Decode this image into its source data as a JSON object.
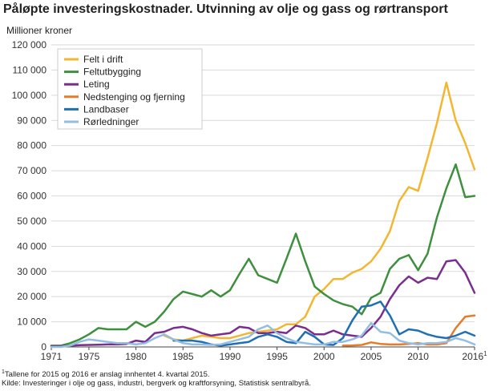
{
  "title": "Påløpte investeringskostnader. Utvinning av olje og gass og rørtransport",
  "ylabel": "Millioner kroner",
  "footnote_marker": "1",
  "footnote_text": "Tallene for 2015 og 2016 er anslag innhentet 4. kvartal 2015.",
  "source": "Kilde: Investeringer i olje og gass, industri, bergverk og kraftforsyning, Statistisk sentralbyrå.",
  "chart_data": {
    "type": "line",
    "xlim": [
      1971,
      2016
    ],
    "ylim": [
      0,
      120000
    ],
    "xticks": [
      1971,
      1975,
      1980,
      1985,
      1990,
      1995,
      2000,
      2005,
      2010,
      2016
    ],
    "xtick_labels": [
      "1971",
      "1975",
      "1980",
      "1985",
      "1990",
      "1995",
      "2000",
      "2005",
      "2010",
      "2016"
    ],
    "last_tick_marker": "1",
    "yticks": [
      0,
      10000,
      20000,
      30000,
      40000,
      50000,
      60000,
      70000,
      80000,
      90000,
      100000,
      110000,
      120000
    ],
    "ytick_labels": [
      "0",
      "10 000",
      "20 000",
      "30 000",
      "40 000",
      "50 000",
      "60 000",
      "70 000",
      "80 000",
      "90 000",
      "100 000",
      "110 000",
      "120 000"
    ],
    "grid": true,
    "legend_position": "top-left",
    "series": [
      {
        "name": "Felt i drift",
        "color": "#f2b630",
        "x": [
          1983,
          1984,
          1985,
          1986,
          1987,
          1988,
          1989,
          1990,
          1991,
          1992,
          1993,
          1994,
          1995,
          1996,
          1997,
          1998,
          1999,
          2000,
          2001,
          2002,
          2003,
          2004,
          2005,
          2006,
          2007,
          2008,
          2009,
          2010,
          2011,
          2012,
          2013,
          2014,
          2015,
          2016
        ],
        "y": [
          4500,
          3000,
          2500,
          3500,
          4500,
          4000,
          3500,
          3500,
          4500,
          5500,
          6000,
          6500,
          7000,
          9000,
          9000,
          12000,
          20000,
          23000,
          27000,
          27000,
          29500,
          31000,
          34000,
          39000,
          46000,
          58000,
          63500,
          62000,
          75000,
          89000,
          105000,
          90000,
          81000,
          70500
        ]
      },
      {
        "name": "Feltutbygging",
        "color": "#3e8f3e",
        "x": [
          1971,
          1972,
          1973,
          1974,
          1975,
          1976,
          1977,
          1978,
          1979,
          1980,
          1981,
          1982,
          1983,
          1984,
          1985,
          1986,
          1987,
          1988,
          1989,
          1990,
          1991,
          1992,
          1993,
          1994,
          1995,
          1996,
          1997,
          1998,
          1999,
          2000,
          2001,
          2002,
          2003,
          2004,
          2005,
          2006,
          2007,
          2008,
          2009,
          2010,
          2011,
          2012,
          2013,
          2014,
          2015,
          2016
        ],
        "y": [
          500,
          500,
          1500,
          3000,
          5000,
          7500,
          7000,
          7000,
          7000,
          10000,
          8000,
          10000,
          14000,
          19000,
          22000,
          21000,
          20000,
          22500,
          20000,
          22500,
          29000,
          35000,
          28500,
          27000,
          25500,
          35000,
          45000,
          34000,
          24000,
          21000,
          18500,
          17000,
          16000,
          13000,
          19500,
          21500,
          31000,
          35000,
          36500,
          30500,
          37000,
          51500,
          63000,
          72500,
          59500,
          60000
        ]
      },
      {
        "name": "Leting",
        "color": "#7b2d8e",
        "x": [
          1971,
          1972,
          1973,
          1974,
          1975,
          1976,
          1977,
          1978,
          1979,
          1980,
          1981,
          1982,
          1983,
          1984,
          1985,
          1986,
          1987,
          1988,
          1989,
          1990,
          1991,
          1992,
          1993,
          1994,
          1995,
          1996,
          1997,
          1998,
          1999,
          2000,
          2001,
          2002,
          2003,
          2004,
          2005,
          2006,
          2007,
          2008,
          2009,
          2010,
          2011,
          2012,
          2013,
          2014,
          2015,
          2016
        ],
        "y": [
          300,
          300,
          500,
          700,
          800,
          900,
          1000,
          1000,
          1200,
          2500,
          2000,
          5500,
          6000,
          7500,
          8000,
          7000,
          5500,
          4500,
          5000,
          5500,
          8000,
          7500,
          5500,
          5500,
          6000,
          5500,
          8500,
          7500,
          5000,
          5000,
          6500,
          5000,
          4500,
          4000,
          7500,
          12000,
          19000,
          24500,
          28000,
          25500,
          27500,
          27000,
          34000,
          34500,
          29500,
          21500
        ]
      },
      {
        "name": "Nedstenging og fjerning",
        "color": "#e87c26",
        "x": [
          2002,
          2003,
          2004,
          2005,
          2006,
          2007,
          2008,
          2009,
          2010,
          2011,
          2012,
          2013,
          2014,
          2015,
          2016
        ],
        "y": [
          500,
          600,
          800,
          1800,
          1200,
          1000,
          1000,
          1200,
          1500,
          1000,
          1000,
          1500,
          7500,
          12000,
          12500
        ]
      },
      {
        "name": "Landbaser",
        "color": "#1f6fb4",
        "x": [
          1984,
          1985,
          1986,
          1987,
          1988,
          1989,
          1990,
          1991,
          1992,
          1993,
          1994,
          1995,
          1996,
          1997,
          1998,
          1999,
          2000,
          2001,
          2002,
          2003,
          2004,
          2005,
          2006,
          2007,
          2008,
          2009,
          2010,
          2011,
          2012,
          2013,
          2014,
          2015,
          2016
        ],
        "y": [
          2500,
          2500,
          2500,
          2000,
          1000,
          500,
          1000,
          1500,
          2000,
          4000,
          5000,
          4000,
          2000,
          1500,
          6000,
          4000,
          1000,
          800,
          3500,
          10500,
          16000,
          16500,
          18000,
          12500,
          5000,
          7000,
          6500,
          5000,
          4000,
          3500,
          4500,
          6000,
          4500
        ]
      },
      {
        "name": "Rørledninger",
        "color": "#93bde3",
        "x": [
          1971,
          1972,
          1973,
          1974,
          1975,
          1976,
          1977,
          1978,
          1979,
          1980,
          1981,
          1982,
          1983,
          1984,
          1985,
          1986,
          1987,
          1988,
          1989,
          1990,
          1991,
          1992,
          1993,
          1994,
          1995,
          1996,
          1997,
          1998,
          1999,
          2000,
          2001,
          2002,
          2003,
          2004,
          2005,
          2006,
          2007,
          2008,
          2009,
          2010,
          2011,
          2012,
          2013,
          2014,
          2015,
          2016
        ],
        "y": [
          0,
          0,
          500,
          2000,
          3000,
          2500,
          2000,
          1500,
          1500,
          1000,
          1500,
          3500,
          5000,
          3000,
          1500,
          1000,
          1000,
          800,
          1000,
          2000,
          3000,
          4000,
          7000,
          8500,
          5500,
          3500,
          2000,
          1500,
          1000,
          1000,
          2000,
          2000,
          3000,
          4500,
          9500,
          6000,
          5500,
          2500,
          1500,
          1000,
          1500,
          1500,
          2000,
          3500,
          2500,
          1000
        ]
      }
    ]
  }
}
